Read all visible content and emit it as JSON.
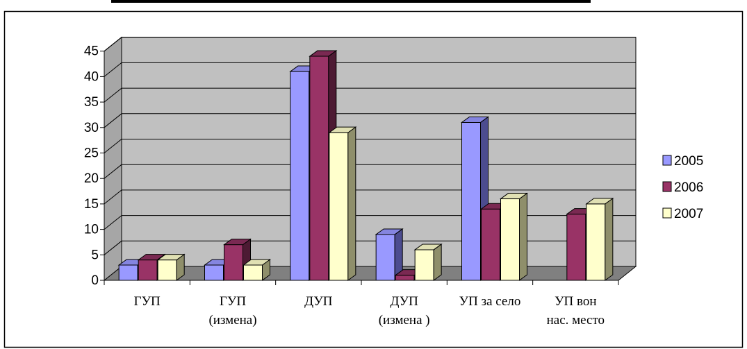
{
  "chart_data": {
    "type": "bar",
    "title": "",
    "xlabel": "",
    "ylabel": "",
    "categories": [
      [
        "ГУП"
      ],
      [
        "ГУП",
        "(измена)"
      ],
      [
        "ДУП"
      ],
      [
        "ДУП",
        "(измена )"
      ],
      [
        "УП за село"
      ],
      [
        "УП вон",
        "нас. место"
      ]
    ],
    "series": [
      {
        "name": "2005",
        "values": [
          3,
          3,
          41,
          9,
          31,
          0
        ],
        "color": "#9999ff",
        "side": "#4c4c8f",
        "top": "#8585e0"
      },
      {
        "name": "2006",
        "values": [
          4,
          7,
          44,
          1,
          14,
          13
        ],
        "color": "#993366",
        "side": "#4d1a33",
        "top": "#7a2952"
      },
      {
        "name": "2007",
        "values": [
          4,
          3,
          29,
          6,
          16,
          15
        ],
        "color": "#ffffcc",
        "side": "#8f8f6b",
        "top": "#e0e0b3"
      }
    ],
    "ylim": [
      0,
      45
    ],
    "yticks": [
      "0",
      "5",
      "10",
      "15",
      "20",
      "25",
      "30",
      "35",
      "40",
      "45"
    ],
    "grid": true,
    "legend": "right",
    "wall_color": "#c0c0c0",
    "floor_color": "#808080"
  }
}
